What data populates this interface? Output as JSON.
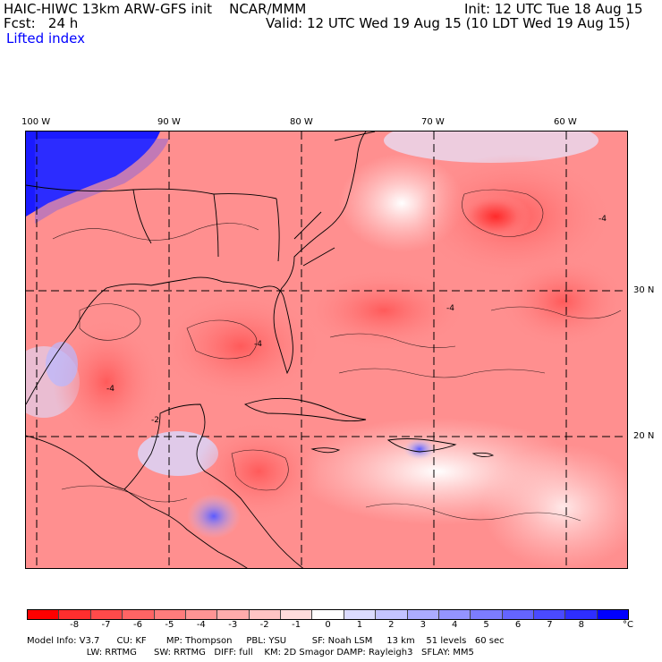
{
  "header": {
    "model_title": "HAIC-HIWC 13km ARW-GFS init    NCAR/MMM",
    "init_time": "Init: 12 UTC Tue 18 Aug 15",
    "forecast": "Fcst:   24 h",
    "valid_time": "Valid: 12 UTC Wed 19 Aug 15 (10 LDT Wed 19 Aug 15)",
    "field_name": "Lifted index"
  },
  "map": {
    "longitude_labels": [
      "100 W",
      "90 W",
      "80 W",
      "70 W",
      "60 W"
    ],
    "latitude_labels": [
      "30 N",
      "20 N"
    ],
    "negative_color": "#ff4d4d",
    "positive_color": "#3b3bff",
    "contour_labels": [
      "-4",
      "-4",
      "-4",
      "-2",
      "-4"
    ]
  },
  "colorbar": {
    "colors": [
      "#ff0000",
      "#ff2e2e",
      "#ff4a4a",
      "#ff6464",
      "#ff7c7c",
      "#ff9494",
      "#ffacac",
      "#ffc4c4",
      "#ffdcdc",
      "#ffffff",
      "#dcdcff",
      "#c4c4ff",
      "#acacff",
      "#9494ff",
      "#7c7cff",
      "#6464ff",
      "#4a4aff",
      "#2e2eff",
      "#0000ff"
    ],
    "labels": [
      "-8",
      "-7",
      "-6",
      "-5",
      "-4",
      "-3",
      "-2",
      "-1",
      "0",
      "1",
      "2",
      "3",
      "4",
      "5",
      "6",
      "7",
      "8"
    ],
    "unit": "°C"
  },
  "model_info": {
    "line1": "Model Info: V3.7      CU: KF       MP: Thompson     PBL: YSU         SF: Noah LSM     13 km    51 levels   60 sec",
    "line2": "                     LW: RRTMG      SW: RRTMG   DIFF: full    KM: 2D Smagor DAMP: Rayleigh3   SFLAY: MM5"
  }
}
